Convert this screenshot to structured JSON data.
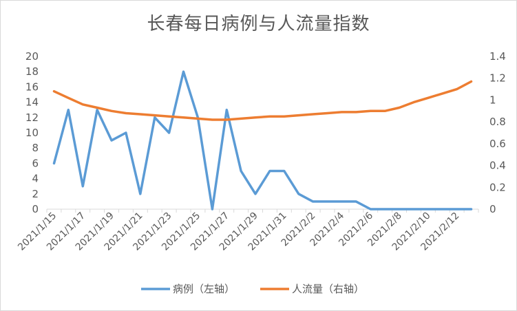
{
  "chart_data": {
    "type": "line",
    "title": "长春每日病例与人流量指数",
    "x": [
      "2021/1/15",
      "2021/1/16",
      "2021/1/17",
      "2021/1/18",
      "2021/1/19",
      "2021/1/20",
      "2021/1/21",
      "2021/1/22",
      "2021/1/23",
      "2021/1/24",
      "2021/1/25",
      "2021/1/26",
      "2021/1/27",
      "2021/1/28",
      "2021/1/29",
      "2021/1/30",
      "2021/1/31",
      "2021/2/1",
      "2021/2/2",
      "2021/2/3",
      "2021/2/4",
      "2021/2/5",
      "2021/2/6",
      "2021/2/7",
      "2021/2/8",
      "2021/2/9",
      "2021/2/10",
      "2021/2/11",
      "2021/2/12",
      "2021/2/13"
    ],
    "x_tick_labels": [
      "2021/1/15",
      "2021/1/17",
      "2021/1/19",
      "2021/1/21",
      "2021/1/23",
      "2021/1/25",
      "2021/1/27",
      "2021/1/29",
      "2021/1/31",
      "2021/2/2",
      "2021/2/4",
      "2021/2/6",
      "2021/2/8",
      "2021/2/10",
      "2021/2/12"
    ],
    "series": [
      {
        "name": "病例（左轴）",
        "axis": "left",
        "color": "#5b9bd5",
        "values": [
          6,
          13,
          3,
          13,
          9,
          10,
          2,
          12,
          10,
          18,
          12,
          0,
          13,
          5,
          2,
          5,
          5,
          2,
          1,
          1,
          1,
          1,
          0,
          0,
          0,
          0,
          0,
          0,
          0,
          0
        ]
      },
      {
        "name": "人流量（右轴）",
        "axis": "right",
        "color": "#ed7d31",
        "values": [
          1.08,
          1.02,
          0.96,
          0.93,
          0.9,
          0.88,
          0.87,
          0.86,
          0.85,
          0.84,
          0.83,
          0.82,
          0.82,
          0.83,
          0.84,
          0.85,
          0.85,
          0.86,
          0.87,
          0.88,
          0.89,
          0.89,
          0.9,
          0.9,
          0.93,
          0.98,
          1.02,
          1.06,
          1.1,
          1.17
        ]
      }
    ],
    "y_left": {
      "ylim": [
        0,
        20
      ],
      "ticks": [
        "0",
        "2",
        "4",
        "6",
        "8",
        "10",
        "12",
        "14",
        "16",
        "18",
        "20"
      ]
    },
    "y_right": {
      "ylim": [
        0,
        1.4
      ],
      "ticks": [
        "0",
        "0.2",
        "0.4",
        "0.6",
        "0.8",
        "1",
        "1.2",
        "1.4"
      ]
    },
    "grid": false,
    "legend_position": "bottom"
  },
  "colors": {
    "axis_line": "#d9d9d9",
    "text": "#595959"
  }
}
